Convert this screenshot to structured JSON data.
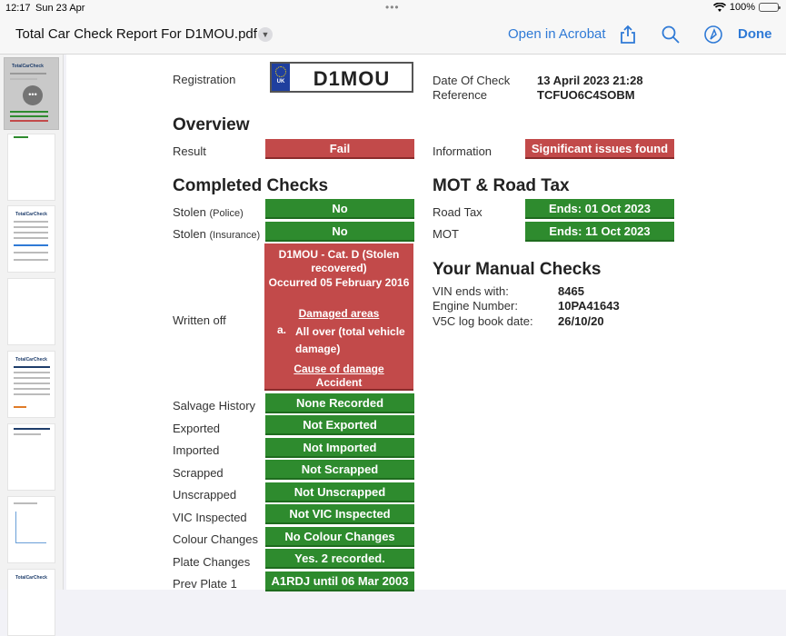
{
  "status_bar": {
    "time": "12:17",
    "date": "Sun 23 Apr",
    "dots": "•••",
    "battery": "100%"
  },
  "nav": {
    "title": "Total Car Check Report For D1MOU.pdf",
    "open_in": "Open in Acrobat",
    "done": "Done"
  },
  "sidebar": {
    "logo": "TotalCarCheck"
  },
  "report": {
    "registration_label": "Registration",
    "plate": {
      "country": "UK",
      "reg": "D1MOU"
    },
    "date_of_check_label": "Date Of Check",
    "date_of_check": "13 April 2023 21:28",
    "reference_label": "Reference",
    "reference": "TCFUO6C4SOBM",
    "overview_heading": "Overview",
    "result_label": "Result",
    "result": "Fail",
    "information_label": "Information",
    "information": "Significant issues found",
    "completed_heading": "Completed Checks",
    "stolen_police_label": "Stolen",
    "stolen_police_note": "(Police)",
    "stolen_police": "No",
    "stolen_insurance_label": "Stolen",
    "stolen_insurance_note": "(Insurance)",
    "stolen_insurance": "No",
    "written_off_label": "Written off",
    "written_off": {
      "line1": "D1MOU - Cat. D (Stolen recovered)",
      "line2": "Occurred 05 February 2016",
      "damaged_areas_title": "Damaged areas",
      "item_marker": "a.",
      "item_text": "All over (total vehicle damage)",
      "cause_title": "Cause of damage",
      "cause": "Accident"
    },
    "checks": [
      {
        "label": "Salvage History",
        "value": "None Recorded"
      },
      {
        "label": "Exported",
        "value": "Not Exported"
      },
      {
        "label": "Imported",
        "value": "Not Imported"
      },
      {
        "label": "Scrapped",
        "value": "Not Scrapped"
      },
      {
        "label": "Unscrapped",
        "value": "Not Unscrapped"
      },
      {
        "label": "VIC Inspected",
        "value": "Not VIC Inspected"
      },
      {
        "label": "Colour Changes",
        "value": "No Colour Changes"
      },
      {
        "label": "Plate Changes",
        "value": "Yes. 2 recorded."
      },
      {
        "label": "Prev Plate 1",
        "value": "A1RDJ until 06 Mar 2003"
      }
    ],
    "mot_heading": "MOT & Road Tax",
    "road_tax_label": "Road Tax",
    "road_tax": "Ends: 01 Oct 2023",
    "mot_label": "MOT",
    "mot": "Ends: 11 Oct 2023",
    "manual_heading": "Your Manual Checks",
    "vin_label": "VIN ends with:",
    "vin": "8465",
    "engine_label": "Engine Number:",
    "engine": "10PA41643",
    "v5c_label": "V5C log book date:",
    "v5c": "26/10/20"
  },
  "colors": {
    "accent": "#2f7ad6",
    "pass_green": "#2e8b2e",
    "fail_red": "#c24a4a"
  }
}
